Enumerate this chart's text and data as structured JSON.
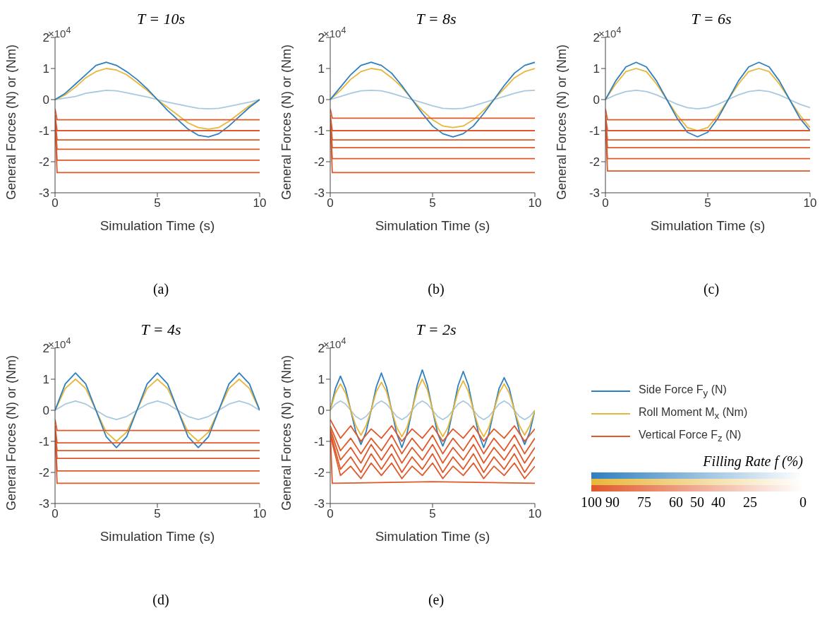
{
  "chart_data": [
    {
      "type": "line",
      "title": "T = 10s",
      "xlabel": "Simulation Time (s)",
      "ylabel": "General Forces (N) or (Nm)",
      "annotations": [
        "×10$^{4}$",
        "(a)"
      ],
      "xlim": [
        0,
        10
      ],
      "xticks": [
        0,
        5,
        10
      ],
      "ylim": [
        -3,
        2
      ],
      "yticks": [
        -3,
        -2,
        -1,
        0,
        1,
        2
      ],
      "grid": false,
      "x": [
        0,
        0.5,
        1,
        1.5,
        2,
        2.5,
        3,
        3.5,
        4,
        4.5,
        5,
        5.5,
        6,
        6.5,
        7,
        7.5,
        8,
        8.5,
        9,
        9.5,
        10
      ],
      "series": [
        {
          "color": "#a9c9df",
          "values": [
            0,
            0.05,
            0.1,
            0.2,
            0.25,
            0.3,
            0.28,
            0.22,
            0.15,
            0.08,
            0,
            -0.08,
            -0.15,
            -0.22,
            -0.28,
            -0.3,
            -0.28,
            -0.22,
            -0.15,
            -0.08,
            0
          ]
        },
        {
          "color": "#e8b73a",
          "values": [
            0,
            0.15,
            0.4,
            0.7,
            0.9,
            1.0,
            0.95,
            0.8,
            0.55,
            0.3,
            0,
            -0.25,
            -0.5,
            -0.75,
            -0.9,
            -0.95,
            -0.9,
            -0.7,
            -0.45,
            -0.2,
            0
          ]
        },
        {
          "color": "#2e7fc0",
          "values": [
            0,
            0.2,
            0.5,
            0.8,
            1.1,
            1.2,
            1.1,
            0.9,
            0.65,
            0.35,
            0,
            -0.35,
            -0.65,
            -0.95,
            -1.15,
            -1.2,
            -1.1,
            -0.85,
            -0.55,
            -0.25,
            0
          ]
        },
        {
          "color": "#e0582a",
          "x": [
            0,
            0.1,
            5,
            10
          ],
          "values": [
            -0.3,
            -0.65,
            -0.65,
            -0.65
          ]
        },
        {
          "color": "#e0582a",
          "x": [
            0,
            0.1,
            5,
            10
          ],
          "values": [
            -0.5,
            -1.0,
            -1.0,
            -1.0
          ]
        },
        {
          "color": "#e0582a",
          "x": [
            0,
            0.1,
            5,
            10
          ],
          "values": [
            -0.6,
            -1.3,
            -1.3,
            -1.3
          ]
        },
        {
          "color": "#e0582a",
          "x": [
            0,
            0.1,
            5,
            10
          ],
          "values": [
            -0.7,
            -1.6,
            -1.6,
            -1.6
          ]
        },
        {
          "color": "#e0582a",
          "x": [
            0,
            0.1,
            5,
            10
          ],
          "values": [
            -0.8,
            -1.95,
            -1.95,
            -1.95
          ]
        },
        {
          "color": "#e0582a",
          "x": [
            0,
            0.1,
            5,
            10
          ],
          "values": [
            -0.7,
            -2.35,
            -2.35,
            -2.35
          ]
        }
      ]
    },
    {
      "type": "line",
      "title": "T = 8s",
      "xlabel": "Simulation Time (s)",
      "ylabel": "General Forces (N) or (Nm)",
      "annotations": [
        "×10$^{4}$",
        "(b)"
      ],
      "xlim": [
        0,
        10
      ],
      "xticks": [
        0,
        5,
        10
      ],
      "ylim": [
        -3,
        2
      ],
      "yticks": [
        -3,
        -2,
        -1,
        0,
        1,
        2
      ],
      "grid": false,
      "x": [
        0,
        0.5,
        1,
        1.5,
        2,
        2.5,
        3,
        3.5,
        4,
        4.5,
        5,
        5.5,
        6,
        6.5,
        7,
        7.5,
        8,
        8.5,
        9,
        9.5,
        10
      ],
      "series": [
        {
          "color": "#a9c9df",
          "values": [
            0,
            0.1,
            0.2,
            0.28,
            0.3,
            0.28,
            0.2,
            0.1,
            0,
            -0.1,
            -0.2,
            -0.28,
            -0.3,
            -0.28,
            -0.2,
            -0.1,
            0,
            0.1,
            0.2,
            0.28,
            0.3
          ]
        },
        {
          "color": "#e8b73a",
          "values": [
            0,
            0.3,
            0.65,
            0.9,
            1.0,
            0.95,
            0.7,
            0.4,
            0,
            -0.35,
            -0.65,
            -0.85,
            -0.9,
            -0.85,
            -0.65,
            -0.35,
            0,
            0.35,
            0.7,
            0.9,
            1.0
          ]
        },
        {
          "color": "#2e7fc0",
          "values": [
            0,
            0.4,
            0.8,
            1.1,
            1.2,
            1.1,
            0.85,
            0.45,
            0,
            -0.45,
            -0.85,
            -1.1,
            -1.2,
            -1.1,
            -0.85,
            -0.45,
            0,
            0.45,
            0.85,
            1.1,
            1.2
          ]
        },
        {
          "color": "#e0582a",
          "x": [
            0,
            0.1,
            5,
            10
          ],
          "values": [
            -0.3,
            -0.6,
            -0.6,
            -0.6
          ]
        },
        {
          "color": "#e0582a",
          "x": [
            0,
            0.1,
            5,
            10
          ],
          "values": [
            -0.5,
            -1.0,
            -1.0,
            -1.0
          ]
        },
        {
          "color": "#e0582a",
          "x": [
            0,
            0.1,
            5,
            10
          ],
          "values": [
            -0.6,
            -1.3,
            -1.3,
            -1.3
          ]
        },
        {
          "color": "#e0582a",
          "x": [
            0,
            0.1,
            5,
            10
          ],
          "values": [
            -0.7,
            -1.55,
            -1.55,
            -1.55
          ]
        },
        {
          "color": "#e0582a",
          "x": [
            0,
            0.1,
            5,
            10
          ],
          "values": [
            -0.8,
            -1.9,
            -1.9,
            -1.9
          ]
        },
        {
          "color": "#e0582a",
          "x": [
            0,
            0.1,
            5,
            10
          ],
          "values": [
            -0.7,
            -2.35,
            -2.35,
            -2.35
          ]
        }
      ]
    },
    {
      "type": "line",
      "title": "T = 6s",
      "xlabel": "Simulation Time (s)",
      "ylabel": "General Forces (N) or (Nm)",
      "annotations": [
        "×10$^{4}$",
        "(c)"
      ],
      "xlim": [
        0,
        10
      ],
      "xticks": [
        0,
        5,
        10
      ],
      "ylim": [
        -3,
        2
      ],
      "yticks": [
        -3,
        -2,
        -1,
        0,
        1,
        2
      ],
      "grid": false,
      "x": [
        0,
        0.5,
        1,
        1.5,
        2,
        2.5,
        3,
        3.5,
        4,
        4.5,
        5,
        5.5,
        6,
        6.5,
        7,
        7.5,
        8,
        8.5,
        9,
        9.5,
        10
      ],
      "series": [
        {
          "color": "#a9c9df",
          "values": [
            0,
            0.15,
            0.26,
            0.3,
            0.26,
            0.15,
            0,
            -0.15,
            -0.26,
            -0.3,
            -0.26,
            -0.15,
            0,
            0.15,
            0.26,
            0.3,
            0.26,
            0.15,
            0,
            -0.15,
            -0.26
          ]
        },
        {
          "color": "#e8b73a",
          "values": [
            0,
            0.5,
            0.9,
            1.0,
            0.9,
            0.5,
            0,
            -0.5,
            -0.9,
            -1.0,
            -0.9,
            -0.5,
            0,
            0.5,
            0.9,
            1.0,
            0.9,
            0.5,
            0,
            -0.5,
            -0.9
          ]
        },
        {
          "color": "#2e7fc0",
          "values": [
            0,
            0.6,
            1.05,
            1.2,
            1.05,
            0.6,
            0,
            -0.6,
            -1.05,
            -1.2,
            -1.05,
            -0.6,
            0,
            0.6,
            1.05,
            1.2,
            1.05,
            0.6,
            0,
            -0.6,
            -1.0
          ]
        },
        {
          "color": "#e0582a",
          "x": [
            0,
            0.1,
            5,
            10
          ],
          "values": [
            -0.3,
            -0.65,
            -0.65,
            -0.65
          ]
        },
        {
          "color": "#e0582a",
          "x": [
            0,
            0.1,
            5,
            10
          ],
          "values": [
            -0.5,
            -1.0,
            -1.0,
            -1.0
          ]
        },
        {
          "color": "#e0582a",
          "x": [
            0,
            0.1,
            5,
            10
          ],
          "values": [
            -0.6,
            -1.3,
            -1.3,
            -1.3
          ]
        },
        {
          "color": "#e0582a",
          "x": [
            0,
            0.1,
            5,
            10
          ],
          "values": [
            -0.7,
            -1.55,
            -1.55,
            -1.55
          ]
        },
        {
          "color": "#e0582a",
          "x": [
            0,
            0.1,
            5,
            10
          ],
          "values": [
            -0.8,
            -1.9,
            -1.9,
            -1.9
          ]
        },
        {
          "color": "#e0582a",
          "x": [
            0,
            0.1,
            5,
            10
          ],
          "values": [
            -0.7,
            -2.3,
            -2.3,
            -2.3
          ]
        }
      ]
    },
    {
      "type": "line",
      "title": "T = 4s",
      "xlabel": "Simulation Time (s)",
      "ylabel": "General Forces (N) or (Nm)",
      "annotations": [
        "×10$^{4}$",
        "(d)"
      ],
      "xlim": [
        0,
        10
      ],
      "xticks": [
        0,
        5,
        10
      ],
      "ylim": [
        -3,
        2
      ],
      "yticks": [
        -3,
        -2,
        -1,
        0,
        1,
        2
      ],
      "grid": false,
      "x": [
        0,
        0.5,
        1,
        1.5,
        2,
        2.5,
        3,
        3.5,
        4,
        4.5,
        5,
        5.5,
        6,
        6.5,
        7,
        7.5,
        8,
        8.5,
        9,
        9.5,
        10
      ],
      "series": [
        {
          "color": "#a9c9df",
          "values": [
            0,
            0.2,
            0.3,
            0.2,
            0,
            -0.2,
            -0.3,
            -0.2,
            0,
            0.2,
            0.3,
            0.2,
            0,
            -0.2,
            -0.3,
            -0.2,
            0,
            0.2,
            0.3,
            0.2,
            0
          ]
        },
        {
          "color": "#e8b73a",
          "values": [
            0,
            0.7,
            1.0,
            0.7,
            0,
            -0.7,
            -1.0,
            -0.7,
            0,
            0.7,
            1.0,
            0.7,
            0,
            -0.7,
            -1.0,
            -0.7,
            0,
            0.7,
            1.0,
            0.7,
            0
          ]
        },
        {
          "color": "#2e7fc0",
          "values": [
            0,
            0.85,
            1.2,
            0.85,
            0,
            -0.85,
            -1.2,
            -0.85,
            0,
            0.85,
            1.2,
            0.85,
            0,
            -0.85,
            -1.2,
            -0.85,
            0,
            0.85,
            1.2,
            0.85,
            0
          ]
        },
        {
          "color": "#e0582a",
          "x": [
            0,
            0.1,
            5,
            10
          ],
          "values": [
            -0.3,
            -0.65,
            -0.65,
            -0.65
          ]
        },
        {
          "color": "#e0582a",
          "x": [
            0,
            0.1,
            5,
            10
          ],
          "values": [
            -0.5,
            -1.05,
            -1.05,
            -1.05
          ]
        },
        {
          "color": "#e0582a",
          "x": [
            0,
            0.1,
            5,
            10
          ],
          "values": [
            -0.6,
            -1.3,
            -1.3,
            -1.3
          ]
        },
        {
          "color": "#e0582a",
          "x": [
            0,
            0.1,
            5,
            10
          ],
          "values": [
            -0.7,
            -1.55,
            -1.55,
            -1.55
          ]
        },
        {
          "color": "#e0582a",
          "x": [
            0,
            0.1,
            5,
            10
          ],
          "values": [
            -0.8,
            -1.95,
            -1.95,
            -1.95
          ]
        },
        {
          "color": "#e0582a",
          "x": [
            0,
            0.1,
            5,
            10
          ],
          "values": [
            -0.7,
            -2.35,
            -2.35,
            -2.35
          ]
        }
      ]
    },
    {
      "type": "line",
      "title": "T = 2s",
      "xlabel": "Simulation Time (s)",
      "ylabel": "General Forces (N) or (Nm)",
      "annotations": [
        "×10$^{4}$",
        "(e)"
      ],
      "xlim": [
        0,
        10
      ],
      "xticks": [
        0,
        5,
        10
      ],
      "ylim": [
        -3,
        2
      ],
      "yticks": [
        -3,
        -2,
        -1,
        0,
        1,
        2
      ],
      "grid": false,
      "legend": "right",
      "clabel": "Filling Rate f (%)",
      "clim": [
        100,
        0
      ],
      "cticks": [
        100,
        90,
        75,
        60,
        50,
        40,
        25,
        0
      ],
      "x": [
        0,
        0.25,
        0.5,
        0.75,
        1,
        1.25,
        1.5,
        1.75,
        2,
        2.25,
        2.5,
        2.75,
        3,
        3.25,
        3.5,
        3.75,
        4,
        4.25,
        4.5,
        4.75,
        5,
        5.25,
        5.5,
        5.75,
        6,
        6.25,
        6.5,
        6.75,
        7,
        7.25,
        7.5,
        7.75,
        8,
        8.25,
        8.5,
        8.75,
        9,
        9.25,
        9.5,
        9.75,
        10
      ],
      "series": [
        {
          "color": "#a9c9df",
          "values": [
            0,
            0.2,
            0.3,
            0.2,
            0,
            -0.2,
            -0.3,
            -0.2,
            0,
            0.2,
            0.3,
            0.2,
            0,
            -0.2,
            -0.3,
            -0.2,
            0,
            0.2,
            0.3,
            0.2,
            0,
            -0.2,
            -0.3,
            -0.2,
            0,
            0.2,
            0.3,
            0.2,
            0,
            -0.2,
            -0.3,
            -0.2,
            0,
            0.2,
            0.3,
            0.2,
            0,
            -0.2,
            -0.3,
            -0.2,
            0
          ]
        },
        {
          "name": "Side Force F$_{y}$ (N)",
          "color": "#2e7fc0",
          "values": [
            0,
            0.7,
            1.1,
            0.7,
            0,
            -0.7,
            -1.1,
            -0.7,
            0,
            0.75,
            1.2,
            0.75,
            0,
            -0.75,
            -1.2,
            -0.75,
            0,
            0.8,
            1.3,
            0.8,
            0,
            -0.75,
            -1.15,
            -0.75,
            0,
            0.8,
            1.25,
            0.8,
            0,
            -0.75,
            -1.2,
            -0.75,
            0,
            0.7,
            1.05,
            0.7,
            0,
            -0.7,
            -1.1,
            -0.7,
            0
          ]
        },
        {
          "name": "Roll Moment M$_{x}$ (Nm)",
          "color": "#e8b73a",
          "values": [
            0,
            0.55,
            0.85,
            0.55,
            0,
            -0.5,
            -0.8,
            -0.5,
            0,
            0.6,
            0.9,
            0.6,
            0,
            -0.55,
            -0.85,
            -0.55,
            0,
            0.65,
            1.0,
            0.65,
            0,
            -0.55,
            -0.85,
            -0.55,
            0,
            0.6,
            0.95,
            0.6,
            0,
            -0.55,
            -0.85,
            -0.55,
            0,
            0.55,
            0.85,
            0.55,
            0,
            -0.5,
            -0.8,
            -0.5,
            0
          ]
        },
        {
          "name": "Vertical Force F$_{z}$ (N)",
          "color": "#e0582a",
          "x": [
            0,
            0.5,
            1,
            1.5,
            2,
            2.5,
            3,
            3.5,
            4,
            4.5,
            5,
            5.5,
            6,
            6.5,
            7,
            7.5,
            8,
            8.5,
            9,
            9.5,
            10
          ],
          "values": [
            -0.3,
            -0.9,
            -0.5,
            -1.0,
            -0.6,
            -0.9,
            -0.5,
            -1.0,
            -0.6,
            -0.9,
            -0.5,
            -1.0,
            -0.6,
            -0.9,
            -0.5,
            -1.0,
            -0.6,
            -0.9,
            -0.5,
            -1.0,
            -0.6
          ]
        },
        {
          "color": "#e0582a",
          "x": [
            0,
            0.5,
            1,
            1.5,
            2,
            2.5,
            3,
            3.5,
            4,
            4.5,
            5,
            5.5,
            6,
            6.5,
            7,
            7.5,
            8,
            8.5,
            9,
            9.5,
            10
          ],
          "values": [
            -0.5,
            -1.3,
            -0.9,
            -1.4,
            -0.9,
            -1.3,
            -0.8,
            -1.4,
            -0.9,
            -1.3,
            -0.8,
            -1.4,
            -0.9,
            -1.3,
            -0.8,
            -1.4,
            -0.9,
            -1.3,
            -0.8,
            -1.4,
            -0.9
          ]
        },
        {
          "color": "#e0582a",
          "x": [
            0,
            0.5,
            1,
            1.5,
            2,
            2.5,
            3,
            3.5,
            4,
            4.5,
            5,
            5.5,
            6,
            6.5,
            7,
            7.5,
            8,
            8.5,
            9,
            9.5,
            10
          ],
          "values": [
            -0.6,
            -1.6,
            -1.2,
            -1.7,
            -1.1,
            -1.6,
            -1.1,
            -1.7,
            -1.2,
            -1.6,
            -1.1,
            -1.7,
            -1.2,
            -1.6,
            -1.1,
            -1.7,
            -1.2,
            -1.6,
            -1.1,
            -1.7,
            -1.2
          ]
        },
        {
          "color": "#e0582a",
          "x": [
            0,
            0.5,
            1,
            1.5,
            2,
            2.5,
            3,
            3.5,
            4,
            4.5,
            5,
            5.5,
            6,
            6.5,
            7,
            7.5,
            8,
            8.5,
            9,
            9.5,
            10
          ],
          "values": [
            -0.7,
            -1.9,
            -1.5,
            -2.0,
            -1.4,
            -1.9,
            -1.4,
            -2.0,
            -1.5,
            -1.9,
            -1.4,
            -2.0,
            -1.5,
            -1.9,
            -1.4,
            -2.0,
            -1.5,
            -1.9,
            -1.4,
            -2.0,
            -1.5
          ]
        },
        {
          "color": "#e0582a",
          "x": [
            0,
            0.5,
            1,
            1.5,
            2,
            2.5,
            3,
            3.5,
            4,
            4.5,
            5,
            5.5,
            6,
            6.5,
            7,
            7.5,
            8,
            8.5,
            9,
            9.5,
            10
          ],
          "values": [
            -0.8,
            -2.1,
            -1.8,
            -2.2,
            -1.7,
            -2.1,
            -1.7,
            -2.2,
            -1.8,
            -2.1,
            -1.7,
            -2.2,
            -1.8,
            -2.1,
            -1.7,
            -2.2,
            -1.8,
            -2.1,
            -1.7,
            -2.2,
            -1.8
          ]
        },
        {
          "color": "#e0582a",
          "x": [
            0,
            0.1,
            5,
            10
          ],
          "values": [
            -0.7,
            -2.35,
            -2.3,
            -2.35
          ]
        }
      ]
    }
  ]
}
